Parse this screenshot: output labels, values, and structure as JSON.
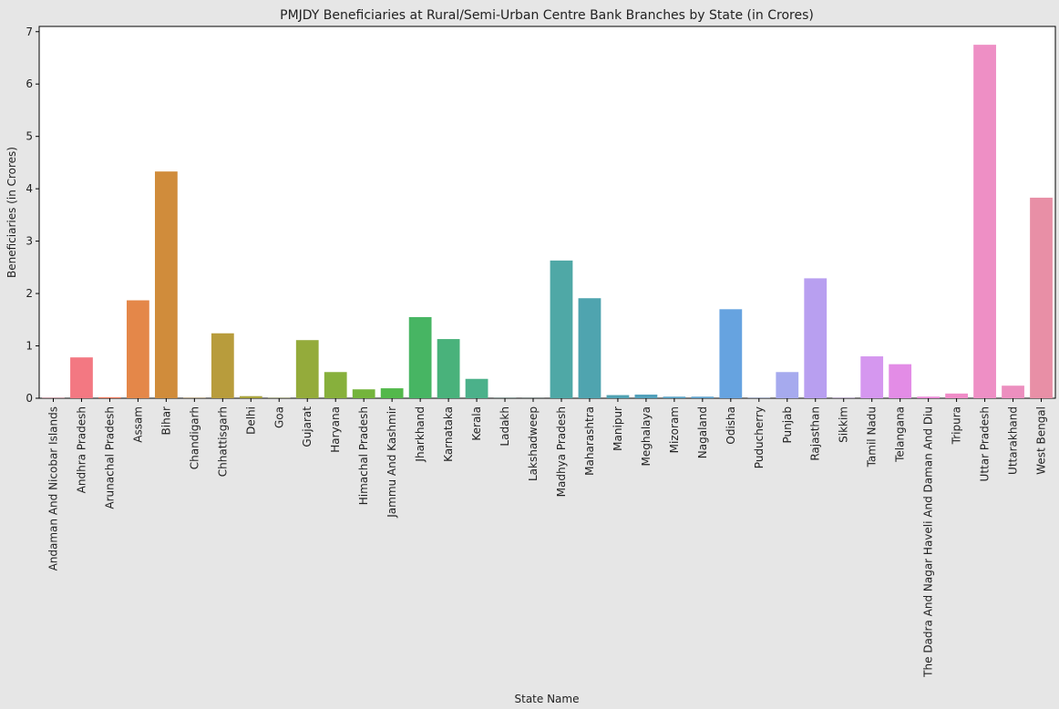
{
  "chart_data": {
    "type": "bar",
    "title": "PMJDY Beneficiaries at Rural/Semi-Urban Centre Bank Branches by State (in Crores)",
    "xlabel": "State Name",
    "ylabel": "Beneficiaries (in Crores)",
    "ylim": [
      0,
      7.1
    ],
    "yticks": [
      "0",
      "1",
      "2",
      "3",
      "4",
      "5",
      "6",
      "7"
    ],
    "grid": false,
    "categories": [
      "Andaman And Nicobar Islands",
      "Andhra Pradesh",
      "Arunachal Pradesh",
      "Assam",
      "Bihar",
      "Chandigarh",
      "Chhattisgarh",
      "Delhi",
      "Goa",
      "Gujarat",
      "Haryana",
      "Himachal Pradesh",
      "Jammu And Kashmir",
      "Jharkhand",
      "Karnataka",
      "Kerala",
      "Ladakh",
      "Lakshadweep",
      "Madhya Pradesh",
      "Maharashtra",
      "Manipur",
      "Meghalaya",
      "Mizoram",
      "Nagaland",
      "Odisha",
      "Puducherry",
      "Punjab",
      "Rajasthan",
      "Sikkim",
      "Tamil Nadu",
      "Telangana",
      "The Dadra And Nagar Haveli And Daman And Diu",
      "Tripura",
      "Uttar Pradesh",
      "Uttarakhand",
      "West Bengal"
    ],
    "values": [
      0.005,
      0.78,
      0.02,
      1.87,
      4.33,
      0.005,
      1.24,
      0.04,
      0.005,
      1.11,
      0.5,
      0.17,
      0.19,
      1.55,
      1.13,
      0.37,
      0.003,
      0.002,
      2.63,
      1.91,
      0.06,
      0.07,
      0.03,
      0.03,
      1.7,
      0.005,
      0.5,
      2.29,
      0.005,
      0.8,
      0.65,
      0.03,
      0.09,
      6.75,
      0.24,
      3.83
    ],
    "colors": [
      "#f77189",
      "#f37882",
      "#ee7c5f",
      "#e48749",
      "#d08c3b",
      "#c2933b",
      "#b89c3c",
      "#a9a33c",
      "#9ea63d",
      "#94ab3b",
      "#87b03c",
      "#74b43c",
      "#53b84b",
      "#47b563",
      "#49b27b",
      "#4bb18a",
      "#4dad96",
      "#4eab9f",
      "#4fa8a6",
      "#4fa4af",
      "#50a2b3",
      "#52a1bb",
      "#57a0c3",
      "#5da0cb",
      "#66a3e0",
      "#84a6ea",
      "#a6aaee",
      "#b89ff0",
      "#c89df1",
      "#d597ef",
      "#e38ce6",
      "#eb87d6",
      "#f08cc8",
      "#ee8fc5",
      "#ec8fbf",
      "#e88fa6"
    ]
  }
}
